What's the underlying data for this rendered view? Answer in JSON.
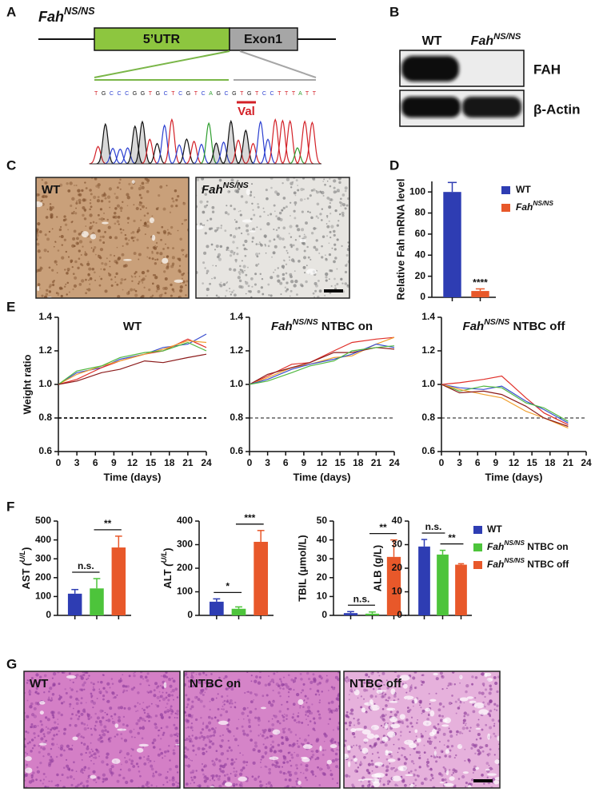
{
  "panel_letters": [
    "A",
    "B",
    "C",
    "D",
    "E",
    "F",
    "G"
  ],
  "panel_a": {
    "allele": "FahNS/NS",
    "utr": "5’UTR",
    "exon": "Exon1",
    "sequence": "TGCCCGGTGCTCGTCAGCGTGTCCTTTATT",
    "codon": "Val"
  },
  "panel_b": {
    "lanes": [
      "WT",
      "FahNS/NS"
    ],
    "bands": [
      "FAH",
      "β-Actin"
    ]
  },
  "panel_c": {
    "images": [
      "WT",
      "FahNS/NS"
    ]
  },
  "panel_g": {
    "images": [
      "WT",
      "NTBC on",
      "NTBC off"
    ]
  },
  "legend_f": [
    {
      "name": "WT",
      "color": "#2e3db3"
    },
    {
      "name": "FahNS/NS NTBC on",
      "color": "#4dc43b"
    },
    {
      "name": "FahNS/NS NTBC off",
      "color": "#e8582a"
    }
  ],
  "chart_data": [
    {
      "type": "bar",
      "ylabel": "Relative Fah mRNA level",
      "values": [
        100,
        6
      ],
      "errors": [
        9,
        2
      ],
      "colors": [
        "#2e3db3",
        "#e8582a"
      ],
      "ylim": [
        0,
        110
      ],
      "yticks": [
        0,
        20,
        40,
        60,
        80,
        100
      ],
      "annotations": [
        {
          "text": "****",
          "at": 1
        }
      ],
      "legend": [
        {
          "name": "WT",
          "color": "#2e3db3"
        },
        {
          "name": "FahNS/NS",
          "color": "#e8582a"
        }
      ]
    },
    {
      "type": "line",
      "title": "WT",
      "xlabel": "Time (days)",
      "ylabel": "Weight ratio",
      "x": [
        0,
        3,
        7,
        10,
        14,
        17,
        21,
        24
      ],
      "series": [
        {
          "color": "#3b4fd0",
          "values": [
            1.0,
            1.07,
            1.1,
            1.15,
            1.18,
            1.22,
            1.24,
            1.3
          ]
        },
        {
          "color": "#e0302a",
          "values": [
            1.0,
            1.03,
            1.1,
            1.14,
            1.18,
            1.2,
            1.27,
            1.22
          ]
        },
        {
          "color": "#f0a030",
          "values": [
            1.0,
            1.06,
            1.11,
            1.14,
            1.18,
            1.21,
            1.26,
            1.25
          ]
        },
        {
          "color": "#50b840",
          "values": [
            1.0,
            1.08,
            1.11,
            1.16,
            1.19,
            1.2,
            1.25,
            1.2
          ]
        },
        {
          "color": "#8b1a1a",
          "values": [
            1.0,
            1.02,
            1.07,
            1.09,
            1.14,
            1.13,
            1.16,
            1.18
          ]
        }
      ],
      "xlim": [
        0,
        24
      ],
      "xticks": [
        0,
        3,
        6,
        9,
        12,
        15,
        18,
        21,
        24
      ],
      "ylim": [
        0.6,
        1.4
      ],
      "yticks": [
        0.6,
        0.8,
        {
          "value": 1,
          "label": "1.0"
        },
        1.2,
        1.4
      ],
      "hline": 0.8
    },
    {
      "type": "line",
      "title": "FahNS/NS NTBC on",
      "xlabel": "Time (days)",
      "x": [
        0,
        3,
        7,
        10,
        14,
        17,
        21,
        24
      ],
      "series": [
        {
          "color": "#e0302a",
          "values": [
            1.0,
            1.05,
            1.12,
            1.13,
            1.2,
            1.25,
            1.27,
            1.28
          ]
        },
        {
          "color": "#f0a030",
          "values": [
            1.0,
            1.04,
            1.1,
            1.12,
            1.16,
            1.17,
            1.24,
            1.28
          ]
        },
        {
          "color": "#8b1a1a",
          "values": [
            1.0,
            1.06,
            1.1,
            1.13,
            1.19,
            1.19,
            1.22,
            1.21
          ]
        },
        {
          "color": "#3b4fd0",
          "values": [
            1.0,
            1.03,
            1.09,
            1.12,
            1.15,
            1.18,
            1.24,
            1.22
          ]
        },
        {
          "color": "#50b840",
          "values": [
            1.0,
            1.02,
            1.07,
            1.11,
            1.14,
            1.2,
            1.22,
            1.23
          ]
        }
      ],
      "xlim": [
        0,
        24
      ],
      "xticks": [
        0,
        3,
        6,
        9,
        12,
        15,
        18,
        21,
        24
      ],
      "ylim": [
        0.6,
        1.4
      ],
      "yticks": [
        0.6,
        0.8,
        {
          "value": 1,
          "label": "1.0"
        },
        1.2,
        1.4
      ],
      "hline": 0.8
    },
    {
      "type": "line",
      "title": "FahNS/NS NTBC off",
      "xlabel": "Time (days)",
      "x": [
        0,
        3,
        7,
        10,
        14,
        17,
        21
      ],
      "series": [
        {
          "color": "#e0302a",
          "values": [
            1.0,
            1.01,
            1.03,
            1.05,
            0.92,
            0.83,
            0.76
          ]
        },
        {
          "color": "#3b4fd0",
          "values": [
            1.0,
            0.98,
            0.97,
            0.99,
            0.9,
            0.85,
            0.77
          ]
        },
        {
          "color": "#50b840",
          "values": [
            1.0,
            0.96,
            0.99,
            0.98,
            0.89,
            0.86,
            0.78
          ]
        },
        {
          "color": "#f0a030",
          "values": [
            1.0,
            0.97,
            0.94,
            0.92,
            0.84,
            0.8,
            0.74
          ]
        },
        {
          "color": "#8b1a1a",
          "values": [
            1.0,
            0.95,
            0.96,
            0.94,
            0.87,
            0.8,
            0.75
          ]
        }
      ],
      "xlim": [
        0,
        24
      ],
      "xticks": [
        0,
        3,
        6,
        9,
        12,
        15,
        18,
        21,
        24
      ],
      "ylim": [
        0.6,
        1.4
      ],
      "yticks": [
        0.6,
        0.8,
        {
          "value": 1,
          "label": "1.0"
        },
        1.2,
        1.4
      ],
      "hline": 0.8
    },
    {
      "type": "bar",
      "ylabel": "AST (U/L)",
      "values": [
        115,
        143,
        360
      ],
      "errors": [
        22,
        52,
        60
      ],
      "colors": [
        "#2e3db3",
        "#4dc43b",
        "#e8582a"
      ],
      "ylim": [
        0,
        500
      ],
      "yticks": [
        0,
        100,
        200,
        300,
        400,
        500
      ],
      "annotations": [
        {
          "text": "n.s.",
          "from": 0,
          "to": 1
        },
        {
          "text": "**",
          "from": 1,
          "to": 2
        }
      ]
    },
    {
      "type": "bar",
      "ylabel": "ALT (U/L)",
      "values": [
        58,
        28,
        312
      ],
      "errors": [
        12,
        8,
        48
      ],
      "colors": [
        "#2e3db3",
        "#4dc43b",
        "#e8582a"
      ],
      "ylim": [
        0,
        400
      ],
      "yticks": [
        0,
        100,
        200,
        300,
        400
      ],
      "annotations": [
        {
          "text": "*",
          "from": 0,
          "to": 1
        },
        {
          "text": "***",
          "from": 1,
          "to": 2
        }
      ]
    },
    {
      "type": "bar",
      "ylabel": "TBIL (μmol/L)",
      "values": [
        1.2,
        0.9,
        31
      ],
      "errors": [
        0.8,
        0.9,
        9
      ],
      "colors": [
        "#2e3db3",
        "#4dc43b",
        "#e8582a"
      ],
      "ylim": [
        0,
        50
      ],
      "yticks": [
        0,
        10,
        20,
        30,
        40,
        50
      ],
      "annotations": [
        {
          "text": "n.s.",
          "from": 0,
          "to": 1
        },
        {
          "text": "**",
          "from": 1,
          "to": 2
        }
      ]
    },
    {
      "type": "bar",
      "ylabel": "ALB (g/L)",
      "values": [
        29.2,
        25.8,
        21.5
      ],
      "errors": [
        3,
        1.8,
        0.4
      ],
      "colors": [
        "#2e3db3",
        "#4dc43b",
        "#e8582a"
      ],
      "ylim": [
        0,
        40
      ],
      "yticks": [
        0,
        10,
        20,
        30,
        40
      ],
      "annotations": [
        {
          "text": "n.s.",
          "from": 0,
          "to": 1
        },
        {
          "text": "**",
          "from": 1,
          "to": 2
        }
      ]
    }
  ]
}
